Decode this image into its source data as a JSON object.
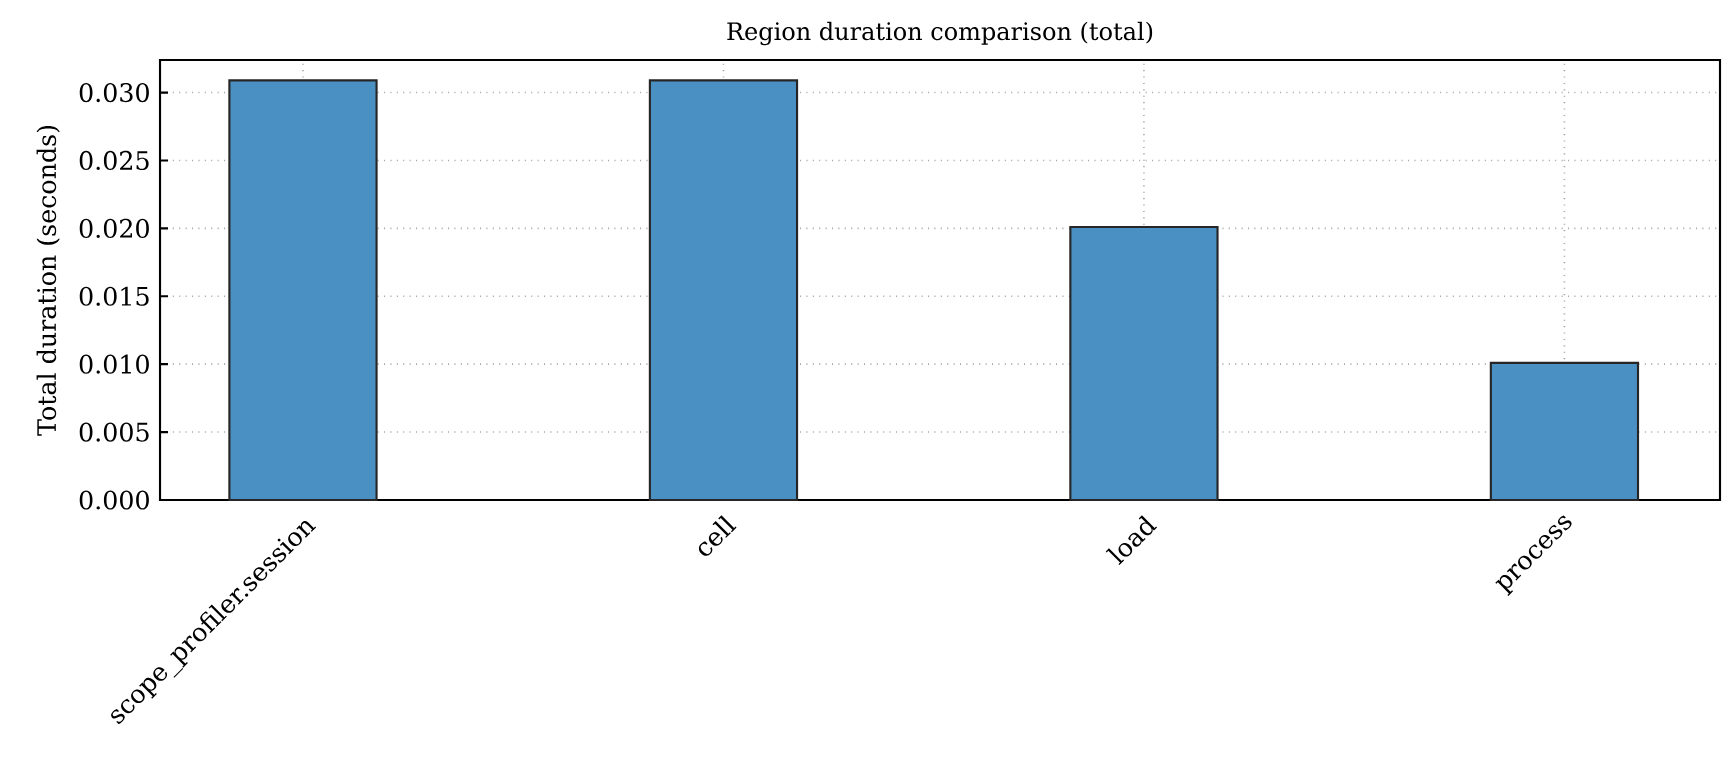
{
  "chart_data": {
    "type": "bar",
    "title": "Region duration comparison (total)",
    "ylabel": "Total duration (seconds)",
    "categories": [
      "scope_profiler.session",
      "cell",
      "load",
      "process"
    ],
    "values": [
      0.0309,
      0.0309,
      0.0201,
      0.0101
    ],
    "color": "#4a90c2",
    "ylim": [
      0,
      0.0324
    ],
    "yticks": [
      {
        "value": 0,
        "label": "0.000"
      },
      {
        "value": 0.005,
        "label": "0.005"
      },
      {
        "value": 0.01,
        "label": "0.010"
      },
      {
        "value": 0.015,
        "label": "0.015"
      },
      {
        "value": 0.02,
        "label": "0.020"
      },
      {
        "value": 0.025,
        "label": "0.025"
      },
      {
        "value": 0.03,
        "label": "0.030"
      }
    ],
    "grid": true
  }
}
